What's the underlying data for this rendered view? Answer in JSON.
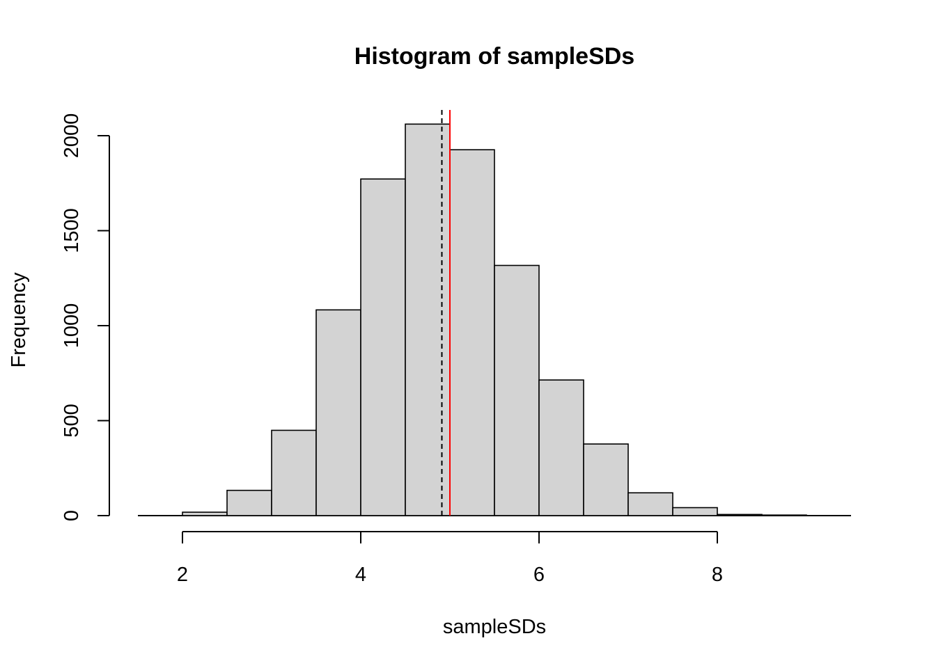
{
  "chart_data": {
    "type": "bar",
    "subtype": "histogram",
    "title": "Histogram of sampleSDs",
    "xlabel": "sampleSDs",
    "ylabel": "Frequency",
    "bins": [
      {
        "x0": 2.0,
        "x1": 2.5,
        "count": 18
      },
      {
        "x0": 2.5,
        "x1": 3.0,
        "count": 133
      },
      {
        "x0": 3.0,
        "x1": 3.5,
        "count": 449
      },
      {
        "x0": 3.5,
        "x1": 4.0,
        "count": 1083
      },
      {
        "x0": 4.0,
        "x1": 4.5,
        "count": 1772
      },
      {
        "x0": 4.5,
        "x1": 5.0,
        "count": 2061
      },
      {
        "x0": 5.0,
        "x1": 5.5,
        "count": 1926
      },
      {
        "x0": 5.5,
        "x1": 6.0,
        "count": 1317
      },
      {
        "x0": 6.0,
        "x1": 6.5,
        "count": 714
      },
      {
        "x0": 6.5,
        "x1": 7.0,
        "count": 377
      },
      {
        "x0": 7.0,
        "x1": 7.5,
        "count": 120
      },
      {
        "x0": 7.5,
        "x1": 8.0,
        "count": 42
      },
      {
        "x0": 8.0,
        "x1": 8.5,
        "count": 6
      },
      {
        "x0": 8.5,
        "x1": 9.0,
        "count": 3
      }
    ],
    "xlim": [
      1.5,
      9.5
    ],
    "ylim": [
      0,
      2150
    ],
    "x_axis_range": [
      2,
      8
    ],
    "x_ticks": [
      2,
      4,
      6,
      8
    ],
    "y_ticks": [
      0,
      500,
      1000,
      1500,
      2000
    ],
    "vlines": [
      {
        "x": 4.91,
        "style": "dashed",
        "color": "#000000"
      },
      {
        "x": 5.0,
        "style": "solid",
        "color": "#ff0000"
      }
    ],
    "bar_fill": "#d3d3d3",
    "bar_stroke": "#000000",
    "grid": false
  }
}
